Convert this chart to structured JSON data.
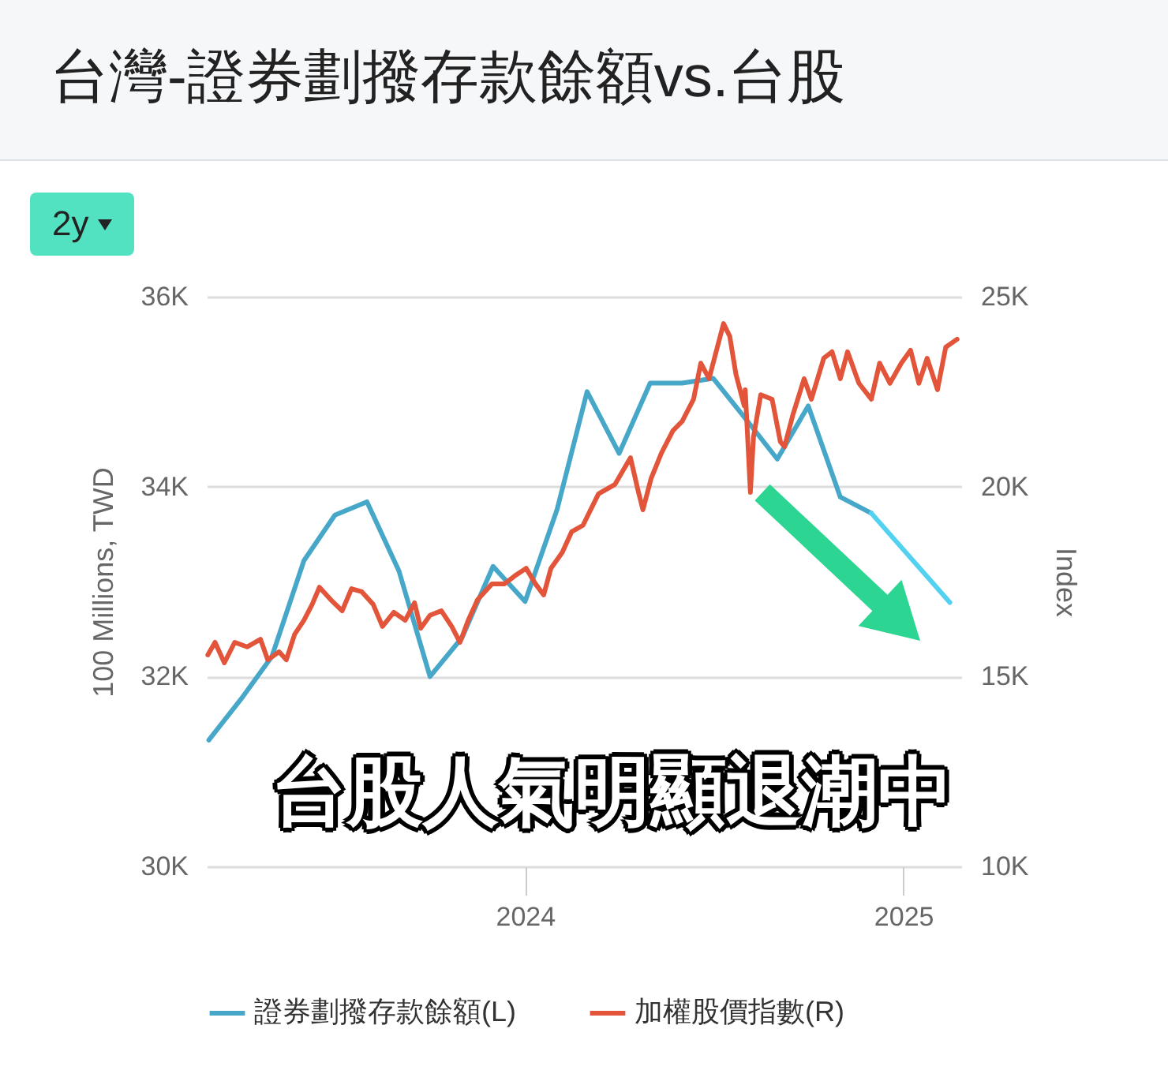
{
  "chart_data": {
    "type": "line",
    "title": "台灣-證券劃撥存款餘額vs.台股",
    "ylabel": "100 Millions, TWD",
    "y2label": "Index",
    "annotations": [
      "2y",
      "台股人氣明顯退潮中"
    ],
    "xlim": [
      "2023-02-27",
      "2025-02-26"
    ],
    "xticks": [
      "2024",
      "2025"
    ],
    "ylim": [
      30000,
      36000
    ],
    "yticks": [
      {
        "value": 30000,
        "label": "30K"
      },
      {
        "value": 32000,
        "label": "32K"
      },
      {
        "value": 34000,
        "label": "34K"
      },
      {
        "value": 36000,
        "label": "36K"
      }
    ],
    "y2lim": [
      10000,
      25000
    ],
    "y2ticks": [
      {
        "value": 10000,
        "label": "10K"
      },
      {
        "value": 15000,
        "label": "15K"
      },
      {
        "value": 20000,
        "label": "20K"
      },
      {
        "value": 25000,
        "label": "25K"
      }
    ],
    "grid": "y",
    "legend": "bottom",
    "series": [
      {
        "name": "證券劃撥存款餘額(L)",
        "color": "#46a7c8",
        "axis": "y",
        "x": [
          "2023-03-01",
          "2023-04-01",
          "2023-05-01",
          "2023-06-01",
          "2023-07-01",
          "2023-08-01",
          "2023-09-01",
          "2023-10-01",
          "2023-11-01",
          "2023-12-01",
          "2024-01-01",
          "2024-02-01",
          "2024-03-01",
          "2024-04-01",
          "2024-05-01",
          "2024-06-01",
          "2024-07-01",
          "2024-08-01",
          "2024-09-01",
          "2024-10-01",
          "2024-11-01",
          "2024-12-01"
        ],
        "values": [
          31330,
          31760,
          32210,
          33220,
          33700,
          33840,
          33110,
          32000,
          32410,
          33160,
          32790,
          33760,
          35000,
          34350,
          35090,
          35090,
          35140,
          34720,
          34290,
          34850,
          33890,
          33720
        ]
      },
      {
        "color": "#52d2f0",
        "axis": "y",
        "x": [
          "2024-12-01",
          "2025-02-15"
        ],
        "values": [
          33720,
          32780
        ]
      },
      {
        "name": "加權股價指數(R)",
        "color": "#e2553a",
        "axis": "y2",
        "x": [
          "2023-02-28",
          "2023-03-07",
          "2023-03-16",
          "2023-03-26",
          "2023-04-07",
          "2023-04-20",
          "2023-04-27",
          "2023-05-08",
          "2023-05-15",
          "2023-05-23",
          "2023-06-01",
          "2023-06-09",
          "2023-06-16",
          "2023-06-27",
          "2023-07-08",
          "2023-07-17",
          "2023-07-27",
          "2023-08-07",
          "2023-08-16",
          "2023-08-27",
          "2023-09-07",
          "2023-09-16",
          "2023-09-22",
          "2023-10-01",
          "2023-10-12",
          "2023-10-22",
          "2023-10-30",
          "2023-11-07",
          "2023-11-16",
          "2023-11-30",
          "2023-12-12",
          "2023-12-22",
          "2024-01-02",
          "2024-01-11",
          "2024-01-19",
          "2024-01-26",
          "2024-02-06",
          "2024-02-15",
          "2024-02-26",
          "2024-03-12",
          "2024-03-28",
          "2024-04-12",
          "2024-04-19",
          "2024-04-24",
          "2024-05-02",
          "2024-05-12",
          "2024-05-23",
          "2024-06-01",
          "2024-06-12",
          "2024-06-19",
          "2024-06-27",
          "2024-07-05",
          "2024-07-11",
          "2024-07-17",
          "2024-07-23",
          "2024-07-31",
          "2024-08-01",
          "2024-08-06",
          "2024-08-09",
          "2024-08-16",
          "2024-08-27",
          "2024-09-04",
          "2024-09-08",
          "2024-09-16",
          "2024-09-27",
          "2024-10-04",
          "2024-10-16",
          "2024-10-24",
          "2024-11-01",
          "2024-11-08",
          "2024-11-19",
          "2024-12-01",
          "2024-12-09",
          "2024-12-19",
          "2024-12-30",
          "2025-01-08",
          "2025-01-16",
          "2025-01-24",
          "2025-02-03",
          "2025-02-11",
          "2025-02-22"
        ],
        "values": [
          15570,
          15900,
          15360,
          15900,
          15780,
          15980,
          15440,
          15650,
          15440,
          16110,
          16480,
          16900,
          17350,
          17020,
          16730,
          17310,
          17230,
          16900,
          16320,
          16690,
          16480,
          16940,
          16270,
          16610,
          16730,
          16320,
          15900,
          16480,
          17020,
          17440,
          17440,
          17650,
          17850,
          17440,
          17150,
          17850,
          18270,
          18810,
          18980,
          19810,
          20060,
          20760,
          19930,
          19390,
          20220,
          20890,
          21470,
          21720,
          22300,
          23250,
          22840,
          23670,
          24290,
          23960,
          22960,
          22130,
          22550,
          19850,
          21300,
          22420,
          22300,
          21180,
          21050,
          21880,
          22840,
          22300,
          23380,
          23550,
          22840,
          23550,
          22720,
          22300,
          23250,
          22720,
          23250,
          23590,
          22720,
          23380,
          22550,
          23670,
          23880
        ]
      }
    ]
  }
}
